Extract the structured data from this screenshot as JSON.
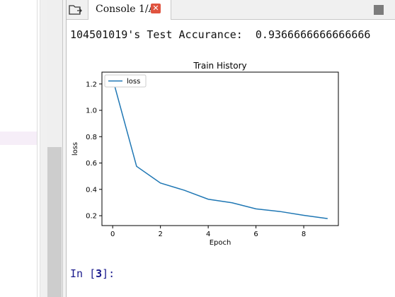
{
  "tab": {
    "label": "Console 1/A",
    "close_glyph": "✕"
  },
  "console": {
    "output_line": "104501019's Test Accurance:  0.9366666666666666",
    "prompt": {
      "prefix": "In [",
      "number": "3",
      "suffix": "]:"
    }
  },
  "colors": {
    "series_line": "#1f77b4",
    "close_button": "#e0533f",
    "prompt": "#1a1a8c"
  },
  "icons": {
    "browse_tabs": "folder-tabs-icon",
    "options": "options-square-icon"
  },
  "chart_data": {
    "type": "line",
    "title": "Train History",
    "xlabel": "Epoch",
    "ylabel": "loss",
    "x": [
      0,
      1,
      2,
      3,
      4,
      5,
      6,
      7,
      8,
      9
    ],
    "series": [
      {
        "name": "loss",
        "values": [
          1.24,
          0.575,
          0.448,
          0.393,
          0.325,
          0.298,
          0.252,
          0.232,
          0.203,
          0.178
        ]
      }
    ],
    "xlim": [
      -0.45,
      9.45
    ],
    "ylim": [
      0.125,
      1.29
    ],
    "xticks": [
      0,
      2,
      4,
      6,
      8
    ],
    "yticks": [
      0.2,
      0.4,
      0.6,
      0.8,
      1.0,
      1.2
    ],
    "xtick_labels": [
      "0",
      "2",
      "4",
      "6",
      "8"
    ],
    "ytick_labels": [
      "0.2",
      "0.4",
      "0.6",
      "0.8",
      "1.0",
      "1.2"
    ],
    "legend": "top-left",
    "grid": false
  }
}
